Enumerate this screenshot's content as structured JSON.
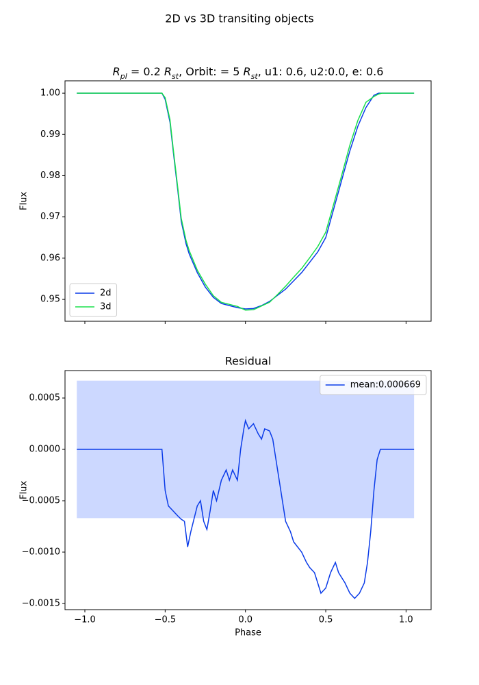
{
  "title": "2D vs 3D transiting objects",
  "chart_data": [
    {
      "type": "line",
      "title": [
        "R",
        "pl",
        " = 0.2 ",
        "R",
        "st",
        ", Orbit: = 5 ",
        "R",
        "st",
        ", u1: 0.6, u2:0.0, e: 0.6"
      ],
      "y_label": "Flux",
      "x": [
        -1.05,
        -0.55,
        -0.52,
        -0.5,
        -0.47,
        -0.45,
        -0.42,
        -0.4,
        -0.37,
        -0.35,
        -0.3,
        -0.25,
        -0.2,
        -0.15,
        -0.1,
        -0.05,
        0,
        0.05,
        0.1,
        0.15,
        0.2,
        0.25,
        0.3,
        0.35,
        0.4,
        0.45,
        0.5,
        0.55,
        0.6,
        0.65,
        0.7,
        0.75,
        0.8,
        0.83,
        0.85,
        1.05
      ],
      "series": [
        {
          "name": "2d",
          "color": "#0a3be8",
          "values": [
            1,
            1,
            1,
            0.9985,
            0.993,
            0.986,
            0.976,
            0.969,
            0.9635,
            0.961,
            0.9565,
            0.953,
            0.9505,
            0.949,
            0.9485,
            0.948,
            0.9477,
            0.9478,
            0.9485,
            0.9495,
            0.951,
            0.9525,
            0.9545,
            0.9565,
            0.959,
            0.9615,
            0.965,
            0.972,
            0.979,
            0.986,
            0.992,
            0.9965,
            0.9995,
            1,
            1,
            1
          ]
        },
        {
          "name": "3d",
          "color": "#18e04a",
          "values": [
            1,
            1,
            1,
            0.9989,
            0.9936,
            0.9866,
            0.9766,
            0.9697,
            0.9643,
            0.9618,
            0.9571,
            0.9537,
            0.9509,
            0.9493,
            0.9488,
            0.9483,
            0.9474,
            0.9475,
            0.9484,
            0.9493,
            0.9512,
            0.9532,
            0.9554,
            0.9575,
            0.9601,
            0.9628,
            0.9663,
            0.9732,
            0.9802,
            0.9874,
            0.9934,
            0.9978,
            0.9992,
            0.9998,
            1,
            1
          ]
        }
      ],
      "xlim": [
        -1.1236,
        1.156
      ],
      "ylim": [
        0.9447,
        1.003
      ],
      "xticks": [
        -1.0,
        -0.5,
        0,
        0.5,
        1.0
      ],
      "yticks": [
        {
          "value": 1.0,
          "label": "1.00"
        },
        0.99,
        0.98,
        0.97,
        0.96,
        0.95
      ],
      "legend": "lower left"
    },
    {
      "type": "line",
      "title": "Residual",
      "x_label": "Phase",
      "y_label": "Flux",
      "x": [
        -1.05,
        -0.53,
        -0.52,
        -0.5,
        -0.48,
        -0.45,
        -0.42,
        -0.4,
        -0.38,
        -0.36,
        -0.34,
        -0.3,
        -0.28,
        -0.26,
        -0.24,
        -0.22,
        -0.2,
        -0.18,
        -0.15,
        -0.12,
        -0.1,
        -0.08,
        -0.05,
        -0.03,
        -0.01,
        0,
        0.02,
        0.05,
        0.08,
        0.1,
        0.12,
        0.15,
        0.17,
        0.2,
        0.22,
        0.25,
        0.28,
        0.3,
        0.35,
        0.38,
        0.4,
        0.43,
        0.45,
        0.47,
        0.5,
        0.53,
        0.56,
        0.58,
        0.62,
        0.65,
        0.68,
        0.71,
        0.74,
        0.76,
        0.78,
        0.8,
        0.82,
        0.84,
        1.05
      ],
      "series": [
        {
          "name": "mean:0.000669",
          "color": "#0a3be8",
          "values": [
            0,
            0,
            0,
            -0.0004,
            -0.00055,
            -0.0006,
            -0.00065,
            -0.00068,
            -0.0007,
            -0.00095,
            -0.0008,
            -0.00055,
            -0.0005,
            -0.0007,
            -0.00078,
            -0.0006,
            -0.0004,
            -0.0005,
            -0.0003,
            -0.0002,
            -0.0003,
            -0.0002,
            -0.0003,
            0,
            0.0002,
            0.00028,
            0.0002,
            0.00025,
            0.00015,
            0.0001,
            0.0002,
            0.00018,
            0.0001,
            -0.0002,
            -0.0004,
            -0.0007,
            -0.0008,
            -0.0009,
            -0.001,
            -0.0011,
            -0.00115,
            -0.0012,
            -0.0013,
            -0.0014,
            -0.00135,
            -0.0012,
            -0.0011,
            -0.0012,
            -0.0013,
            -0.0014,
            -0.00145,
            -0.0014,
            -0.0013,
            -0.0011,
            -0.0008,
            -0.0004,
            -0.0001,
            0,
            0
          ]
        }
      ],
      "band": {
        "x": [
          -1.05,
          1.05
        ],
        "lower": -0.000669,
        "upper": 0.000669,
        "color": "#ccd8ff"
      },
      "xlim": [
        -1.1236,
        1.156
      ],
      "ylim": [
        -0.00156,
        0.000767
      ],
      "xticks": [
        {
          "value": -1.0,
          "label": "−1.0"
        },
        {
          "value": -0.5,
          "label": "−0.5"
        },
        {
          "value": 0,
          "label": "0.0"
        },
        0.5,
        {
          "value": 1.0,
          "label": "1.0"
        }
      ],
      "yticks": [
        {
          "value": 0.0005,
          "label": "0.0005"
        },
        {
          "value": 0,
          "label": "0.0000"
        },
        {
          "value": -0.0005,
          "label": "−0.0005"
        },
        {
          "value": -0.001,
          "label": "−0.0010"
        },
        {
          "value": -0.0015,
          "label": "−0.0015"
        }
      ],
      "legend": "upper right"
    }
  ]
}
